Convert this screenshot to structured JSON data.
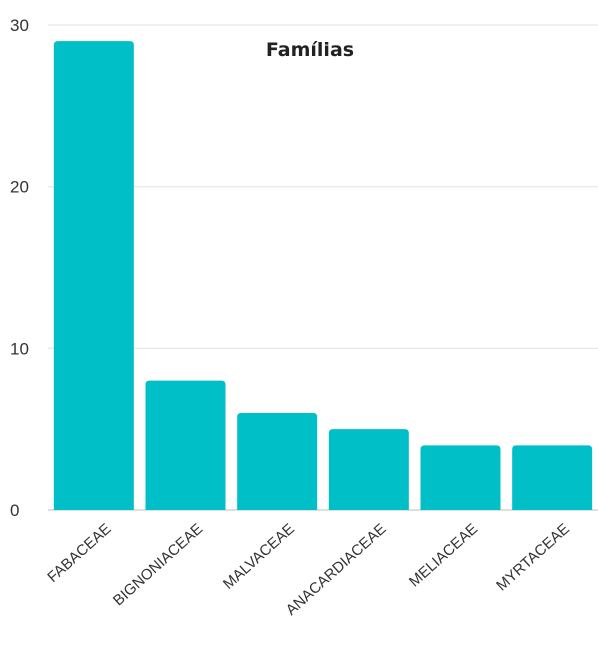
{
  "chart_data": {
    "type": "bar",
    "title": "Famílias",
    "xlabel": "",
    "ylabel": "",
    "categories": [
      "FABACEAE",
      "BIGNONIACEAE",
      "MALVACEAE",
      "ANACARDIACEAE",
      "MELIACEAE",
      "MYRTACEAE"
    ],
    "values": [
      29,
      8,
      6,
      5,
      4,
      4
    ],
    "ylim": [
      0,
      30
    ],
    "yticks": [
      0,
      10,
      20,
      30
    ],
    "grid": true,
    "legend": "none",
    "colors": {
      "bar": "#00BFC6",
      "grid": "#E6E6E6",
      "axis": "#CCCCCC"
    }
  }
}
